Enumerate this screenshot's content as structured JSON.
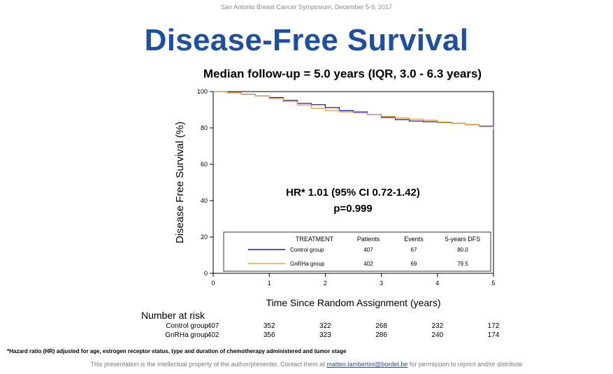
{
  "header": "San Antonio Breast Cancer Symposium, December 5-9, 2017",
  "title": "Disease-Free Survival",
  "subtitle": "Median follow-up = 5.0 years (IQR, 3.0 - 6.3 years)",
  "colors": {
    "title": "#1f4f9e",
    "control": "#1a1acc",
    "gnrha": "#e8a33c"
  },
  "chart_data": {
    "type": "line",
    "ylabel": "Disease Free Survival (%)",
    "xlabel": "Time Since Random Assignment (years)",
    "ylim": [
      0,
      100
    ],
    "xlim": [
      0,
      5
    ],
    "yticks": [
      0,
      20,
      40,
      60,
      80,
      100
    ],
    "xticks": [
      0,
      1,
      2,
      3,
      4,
      5
    ],
    "annotation": {
      "line1": "HR* 1.01 (95% CI 0.72-1.42)",
      "line2": "p=0.999"
    },
    "legend": {
      "position": "bottom",
      "headers": [
        "TREATMENT",
        "Patients",
        "Events",
        "5-years DFS"
      ],
      "rows": [
        {
          "name": "Control group",
          "patients": "407",
          "events": "67",
          "dfs": "80.0"
        },
        {
          "name": "GnRHa group",
          "patients": "402",
          "events": "69",
          "dfs": "79.5"
        }
      ]
    },
    "series": [
      {
        "name": "Control group",
        "color": "#1a1acc",
        "x": [
          0,
          0.25,
          0.5,
          0.75,
          1.0,
          1.25,
          1.5,
          1.75,
          2.0,
          2.25,
          2.5,
          2.75,
          3.0,
          3.25,
          3.5,
          3.75,
          4.0,
          4.25,
          4.5,
          4.75,
          5.0
        ],
        "y": [
          100,
          99.4,
          98.5,
          97.6,
          96.7,
          95.2,
          93.5,
          92.8,
          91.2,
          89.5,
          88.8,
          87.4,
          85.8,
          84.6,
          83.8,
          83.4,
          83.0,
          82.6,
          81.8,
          81.0,
          80.0
        ]
      },
      {
        "name": "GnRHa group",
        "color": "#e8a33c",
        "x": [
          0,
          0.25,
          0.5,
          0.75,
          1.0,
          1.25,
          1.5,
          1.75,
          2.0,
          2.25,
          2.5,
          2.75,
          3.0,
          3.25,
          3.5,
          3.75,
          4.0,
          4.25,
          4.5,
          4.75,
          5.0
        ],
        "y": [
          100,
          99.3,
          98.4,
          97.6,
          96.2,
          94.5,
          92.6,
          90.8,
          89.6,
          88.8,
          88.3,
          87.5,
          86.4,
          85.5,
          84.8,
          84.2,
          83.2,
          82.6,
          81.7,
          80.7,
          79.5
        ]
      }
    ]
  },
  "risk_table": {
    "title": "Number at risk",
    "rows": [
      {
        "label": "Control group",
        "values": [
          "407",
          "352",
          "322",
          "268",
          "232",
          "172"
        ]
      },
      {
        "label": "GnRHa group",
        "values": [
          "402",
          "356",
          "323",
          "286",
          "240",
          "174"
        ]
      }
    ]
  },
  "footnote": "*Hazard ratio (HR) adjusted for age, estrogen receptor status, type and duration of chemotherapy administered and tumor stage",
  "copyright": {
    "before": "This presentation is the intellectual property of the author/presenter. Contact them at ",
    "email": "matteo.lambertini@bordet.be",
    "after": " for permission to reprint and/or distribute"
  }
}
